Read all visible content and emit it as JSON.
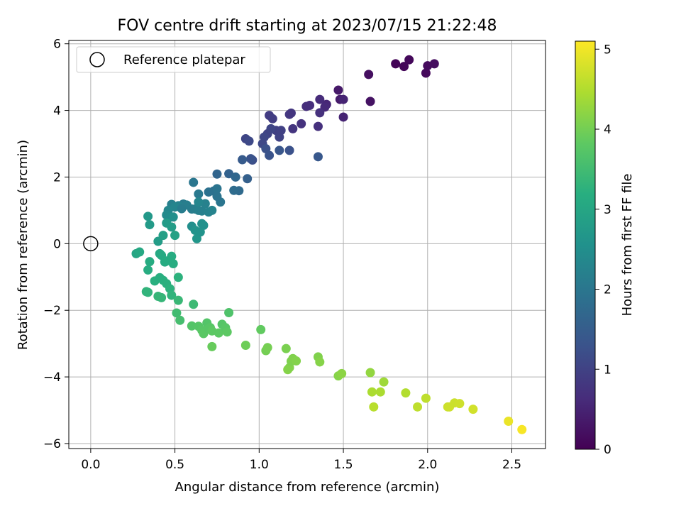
{
  "chart_data": {
    "type": "scatter",
    "title": "FOV centre drift starting at 2023/07/15 21:22:48",
    "xlabel": "Angular distance from reference (arcmin)",
    "ylabel": "Rotation from reference (arcmin)",
    "xlim": [
      -0.13,
      2.7
    ],
    "ylim": [
      -6.15,
      6.1
    ],
    "xticks": [
      0.0,
      0.5,
      1.0,
      1.5,
      2.0,
      2.5
    ],
    "xtick_labels": [
      "0.0",
      "0.5",
      "1.0",
      "1.5",
      "2.0",
      "2.5"
    ],
    "yticks": [
      -6,
      -4,
      -2,
      0,
      2,
      4,
      6
    ],
    "ytick_labels": [
      "−6",
      "−4",
      "−2",
      "0",
      "2",
      "4",
      "6"
    ],
    "grid": true,
    "legend": {
      "placement": "top-left",
      "label": "Reference platepar"
    },
    "reference": {
      "x": 0.0,
      "y": 0.0
    },
    "colorbar": {
      "label": "Hours from first FF file",
      "range": [
        0,
        5.1
      ],
      "ticks": [
        0,
        1,
        2,
        3,
        4,
        5
      ],
      "tick_labels": [
        "0",
        "1",
        "2",
        "3",
        "4",
        "5"
      ],
      "colormap": "viridis"
    },
    "series": [
      {
        "x": [
          1.81,
          1.86,
          1.89,
          1.99,
          2.0,
          2.04,
          1.65,
          1.66,
          1.47,
          1.48,
          1.5,
          1.4,
          1.39,
          1.36,
          1.36,
          1.3,
          1.28,
          1.25,
          1.2,
          1.18,
          1.19,
          1.06,
          1.08,
          1.5,
          1.35,
          1.1,
          1.12,
          1.05,
          1.07,
          1.03,
          1.02,
          0.92,
          0.94,
          0.96,
          1.04,
          1.06,
          1.12,
          1.13,
          1.18,
          1.35,
          0.95,
          0.9,
          0.82,
          0.75,
          0.86,
          0.88,
          0.93,
          0.85,
          0.73,
          0.7,
          0.75,
          0.61,
          0.64,
          0.55,
          0.57,
          0.48,
          0.52,
          0.5,
          0.46,
          0.45,
          0.47,
          0.49,
          0.54,
          0.6,
          0.62,
          0.64,
          0.66,
          0.68,
          0.7,
          0.72,
          0.77,
          0.75,
          0.64,
          0.67,
          0.65,
          0.6,
          0.62,
          0.63,
          0.65,
          0.66,
          0.34,
          0.35,
          0.4,
          0.43,
          0.45,
          0.48,
          0.5,
          0.27,
          0.29,
          0.41,
          0.42,
          0.44,
          0.45,
          0.48,
          0.49,
          0.34,
          0.35,
          0.38,
          0.41,
          0.43,
          0.45,
          0.47,
          0.52,
          0.33,
          0.34,
          0.4,
          0.42,
          0.48,
          0.51,
          0.52,
          0.53,
          0.61,
          0.82,
          0.6,
          0.64,
          0.66,
          0.67,
          0.69,
          0.7,
          0.71,
          0.72,
          0.76,
          0.78,
          0.8,
          0.81,
          0.72,
          0.92,
          1.01,
          1.04,
          1.05,
          1.16,
          1.17,
          1.18,
          1.19,
          1.2,
          1.22,
          1.35,
          1.36,
          1.47,
          1.49,
          1.66,
          1.67,
          1.68,
          1.72,
          1.74,
          1.87,
          1.94,
          1.99,
          2.12,
          2.13,
          2.16,
          2.19,
          2.27,
          2.48,
          2.56
        ],
        "y": [
          5.4,
          5.32,
          5.52,
          5.12,
          5.34,
          5.4,
          5.08,
          4.27,
          4.61,
          4.33,
          3.8,
          4.18,
          4.1,
          4.33,
          3.93,
          4.15,
          4.12,
          3.6,
          3.45,
          3.88,
          3.92,
          3.85,
          3.75,
          4.33,
          3.52,
          3.4,
          3.2,
          3.3,
          3.45,
          3.2,
          3.0,
          3.15,
          3.08,
          2.51,
          2.85,
          2.65,
          2.8,
          3.4,
          2.8,
          2.61,
          2.55,
          2.52,
          2.1,
          2.09,
          2.0,
          1.59,
          1.95,
          1.6,
          1.58,
          1.55,
          1.65,
          1.84,
          1.49,
          1.19,
          1.16,
          1.18,
          1.14,
          1.1,
          1.0,
          0.86,
          0.79,
          0.8,
          1.05,
          1.04,
          1.04,
          1.0,
          0.98,
          1.2,
          0.95,
          1.0,
          1.25,
          1.42,
          1.25,
          0.55,
          0.35,
          0.52,
          0.4,
          0.15,
          0.35,
          0.6,
          0.82,
          0.57,
          0.07,
          0.25,
          0.62,
          0.5,
          0.25,
          -0.3,
          -0.25,
          -0.3,
          -0.35,
          -0.55,
          -0.52,
          -0.38,
          -0.6,
          -0.79,
          -0.54,
          -1.12,
          -1.02,
          -1.1,
          -1.2,
          -1.35,
          -1.01,
          -1.44,
          -1.46,
          -1.58,
          -1.62,
          -1.55,
          -2.08,
          -1.7,
          -2.3,
          -1.82,
          -2.07,
          -2.47,
          -2.48,
          -2.6,
          -2.7,
          -2.38,
          -2.55,
          -2.52,
          -3.09,
          -2.68,
          -2.42,
          -2.52,
          -2.65,
          -2.62,
          -3.05,
          -2.58,
          -3.21,
          -3.12,
          -3.15,
          -3.78,
          -3.72,
          -3.53,
          -3.45,
          -3.52,
          -3.4,
          -3.55,
          -3.97,
          -3.9,
          -3.87,
          -4.45,
          -4.9,
          -4.45,
          -4.15,
          -4.48,
          -4.9,
          -4.64,
          -4.9,
          -4.9,
          -4.78,
          -4.8,
          -4.97,
          -5.33,
          -5.58
        ],
        "c": [
          0.05,
          0.08,
          0.1,
          0.12,
          0.15,
          0.18,
          0.2,
          0.25,
          0.35,
          0.38,
          0.5,
          0.55,
          0.6,
          0.62,
          0.7,
          0.66,
          0.68,
          0.72,
          0.78,
          0.82,
          0.8,
          0.9,
          0.92,
          0.5,
          0.7,
          0.95,
          1.0,
          1.02,
          1.05,
          1.08,
          1.1,
          1.05,
          1.12,
          1.2,
          1.25,
          1.3,
          1.35,
          0.98,
          1.28,
          1.4,
          1.3,
          1.45,
          1.6,
          1.65,
          1.7,
          1.75,
          1.55,
          1.8,
          1.85,
          1.9,
          1.95,
          2.0,
          2.05,
          2.1,
          2.15,
          2.2,
          2.25,
          2.3,
          2.35,
          2.4,
          2.45,
          2.5,
          2.12,
          2.14,
          2.15,
          2.2,
          2.2,
          2.22,
          2.24,
          2.26,
          1.98,
          1.94,
          2.3,
          2.55,
          2.6,
          2.5,
          2.6,
          2.65,
          2.6,
          2.55,
          2.7,
          2.75,
          2.8,
          2.85,
          2.78,
          2.8,
          2.9,
          3.0,
          3.05,
          3.05,
          3.08,
          3.1,
          3.12,
          3.12,
          3.15,
          3.15,
          3.12,
          3.2,
          3.18,
          3.2,
          3.22,
          3.25,
          3.25,
          3.3,
          3.3,
          3.35,
          3.35,
          3.3,
          3.5,
          3.4,
          3.55,
          3.45,
          3.65,
          3.7,
          3.72,
          3.75,
          3.78,
          3.7,
          3.75,
          3.75,
          3.9,
          3.8,
          3.72,
          3.75,
          3.8,
          3.8,
          3.95,
          3.85,
          4.0,
          4.02,
          4.05,
          4.15,
          4.12,
          4.08,
          4.1,
          4.12,
          4.1,
          4.15,
          4.15,
          4.2,
          4.25,
          4.45,
          4.55,
          4.45,
          4.35,
          4.5,
          4.6,
          4.6,
          4.7,
          4.72,
          4.7,
          4.72,
          4.75,
          4.95,
          5.05
        ]
      }
    ]
  }
}
